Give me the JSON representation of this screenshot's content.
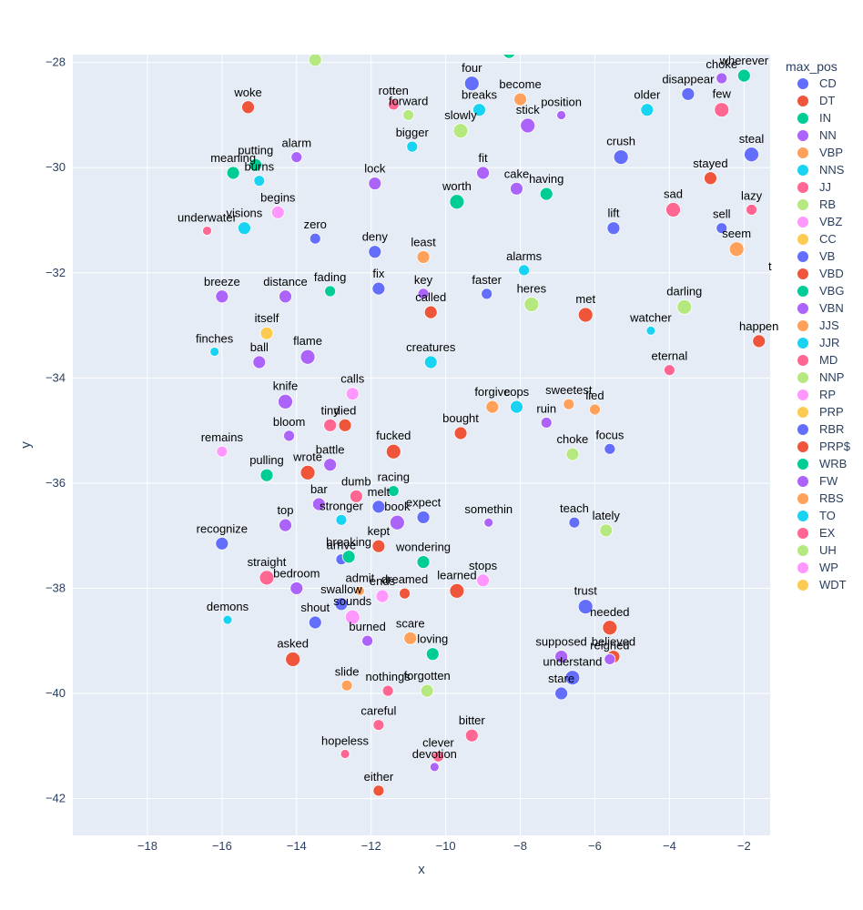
{
  "chart_data": {
    "type": "scatter",
    "title": "",
    "xlabel": "x",
    "ylabel": "y",
    "xlim": [
      -20,
      -1.3
    ],
    "ylim": [
      -42.7,
      -27.85
    ],
    "x_ticks": [
      -18,
      -16,
      -14,
      -12,
      -10,
      -8,
      -6,
      -4,
      -2
    ],
    "y_ticks": [
      -28,
      -30,
      -32,
      -34,
      -36,
      -38,
      -40,
      -42
    ],
    "grid": true,
    "legend": {
      "title": "max_pos",
      "placement": "right",
      "entries": [
        {
          "name": "CD",
          "color": "#636efa"
        },
        {
          "name": "DT",
          "color": "#EF553B"
        },
        {
          "name": "IN",
          "color": "#00cc96"
        },
        {
          "name": "NN",
          "color": "#ab63fa"
        },
        {
          "name": "VBP",
          "color": "#FFA15A"
        },
        {
          "name": "NNS",
          "color": "#19d3f3"
        },
        {
          "name": "JJ",
          "color": "#FF6692"
        },
        {
          "name": "RB",
          "color": "#B6E880"
        },
        {
          "name": "VBZ",
          "color": "#FF97FF"
        },
        {
          "name": "CC",
          "color": "#FECB52"
        },
        {
          "name": "VB",
          "color": "#636efa"
        },
        {
          "name": "VBD",
          "color": "#EF553B"
        },
        {
          "name": "VBG",
          "color": "#00cc96"
        },
        {
          "name": "VBN",
          "color": "#ab63fa"
        },
        {
          "name": "JJS",
          "color": "#FFA15A"
        },
        {
          "name": "JJR",
          "color": "#19d3f3"
        },
        {
          "name": "MD",
          "color": "#FF6692"
        },
        {
          "name": "NNP",
          "color": "#B6E880"
        },
        {
          "name": "RP",
          "color": "#FF97FF"
        },
        {
          "name": "PRP",
          "color": "#FECB52"
        },
        {
          "name": "RBR",
          "color": "#636efa"
        },
        {
          "name": "PRP$",
          "color": "#EF553B"
        },
        {
          "name": "WRB",
          "color": "#00cc96"
        },
        {
          "name": "FW",
          "color": "#ab63fa"
        },
        {
          "name": "RBS",
          "color": "#FFA15A"
        },
        {
          "name": "TO",
          "color": "#19d3f3"
        },
        {
          "name": "EX",
          "color": "#FF6692"
        },
        {
          "name": "UH",
          "color": "#B6E880"
        },
        {
          "name": "WP",
          "color": "#FF97FF"
        },
        {
          "name": "WDT",
          "color": "#FECB52"
        }
      ]
    },
    "points": [
      {
        "label": "four",
        "x": -9.3,
        "y": -28.4,
        "pos": "VB",
        "size": 8
      },
      {
        "label": "become",
        "x": -8.0,
        "y": -28.7,
        "pos": "VBP",
        "size": 7
      },
      {
        "label": "disappear",
        "x": -3.5,
        "y": -28.6,
        "pos": "VB",
        "size": 7
      },
      {
        "label": "choke",
        "x": -2.6,
        "y": -28.3,
        "pos": "FW",
        "size": 6
      },
      {
        "label": "wherever",
        "x": -2.0,
        "y": -28.25,
        "pos": "WRB",
        "size": 7
      },
      {
        "label": "woke",
        "x": -15.3,
        "y": -28.85,
        "pos": "VBD",
        "size": 7
      },
      {
        "label": "rotten",
        "x": -11.4,
        "y": -28.8,
        "pos": "JJ",
        "size": 6
      },
      {
        "label": "forward",
        "x": -11.0,
        "y": -29.0,
        "pos": "RB",
        "size": 6
      },
      {
        "label": "breaks",
        "x": -9.1,
        "y": -28.9,
        "pos": "NNS",
        "size": 7
      },
      {
        "label": "slowly",
        "x": -9.6,
        "y": -29.3,
        "pos": "RB",
        "size": 8
      },
      {
        "label": "stick",
        "x": -7.8,
        "y": -29.2,
        "pos": "NN",
        "size": 8
      },
      {
        "label": "position",
        "x": -6.9,
        "y": -29.0,
        "pos": "NN",
        "size": 5
      },
      {
        "label": "older",
        "x": -4.6,
        "y": -28.9,
        "pos": "JJR",
        "size": 7
      },
      {
        "label": "few",
        "x": -2.6,
        "y": -28.9,
        "pos": "JJ",
        "size": 8
      },
      {
        "label": "bigger",
        "x": -10.9,
        "y": -29.6,
        "pos": "JJR",
        "size": 6
      },
      {
        "label": "putting",
        "x": -15.1,
        "y": -29.95,
        "pos": "VBG",
        "size": 7
      },
      {
        "label": "alarm",
        "x": -14.0,
        "y": -29.8,
        "pos": "NN",
        "size": 6
      },
      {
        "label": "meaning",
        "x": -15.7,
        "y": -30.1,
        "pos": "VBG",
        "size": 7
      },
      {
        "label": "burns",
        "x": -15.0,
        "y": -30.25,
        "pos": "NNS",
        "size": 6
      },
      {
        "label": "crush",
        "x": -5.3,
        "y": -29.8,
        "pos": "VB",
        "size": 8
      },
      {
        "label": "steal",
        "x": -1.8,
        "y": -29.75,
        "pos": "VB",
        "size": 8
      },
      {
        "label": "lock",
        "x": -11.9,
        "y": -30.3,
        "pos": "NN",
        "size": 7
      },
      {
        "label": "fit",
        "x": -9.0,
        "y": -30.1,
        "pos": "VBN",
        "size": 7
      },
      {
        "label": "cake",
        "x": -8.1,
        "y": -30.4,
        "pos": "NN",
        "size": 7
      },
      {
        "label": "having",
        "x": -7.3,
        "y": -30.5,
        "pos": "VBG",
        "size": 7
      },
      {
        "label": "worth",
        "x": -9.7,
        "y": -30.65,
        "pos": "IN",
        "size": 8
      },
      {
        "label": "stayed",
        "x": -2.9,
        "y": -30.2,
        "pos": "VBD",
        "size": 7
      },
      {
        "label": "begins",
        "x": -14.5,
        "y": -30.85,
        "pos": "VBZ",
        "size": 7
      },
      {
        "label": "underwater",
        "x": -16.4,
        "y": -31.2,
        "pos": "JJ",
        "size": 5
      },
      {
        "label": "visions",
        "x": -15.4,
        "y": -31.15,
        "pos": "NNS",
        "size": 7
      },
      {
        "label": "zero",
        "x": -13.5,
        "y": -31.35,
        "pos": "CD",
        "size": 6
      },
      {
        "label": "sad",
        "x": -3.9,
        "y": -30.8,
        "pos": "JJ",
        "size": 8
      },
      {
        "label": "lazy",
        "x": -1.8,
        "y": -30.8,
        "pos": "JJ",
        "size": 6
      },
      {
        "label": "lift",
        "x": -5.5,
        "y": -31.15,
        "pos": "VB",
        "size": 7
      },
      {
        "label": "sell",
        "x": -2.6,
        "y": -31.15,
        "pos": "VB",
        "size": 6
      },
      {
        "label": "seem",
        "x": -2.2,
        "y": -31.55,
        "pos": "VBP",
        "size": 8
      },
      {
        "label": "deny",
        "x": -11.9,
        "y": -31.6,
        "pos": "VB",
        "size": 7
      },
      {
        "label": "least",
        "x": -10.6,
        "y": -31.7,
        "pos": "JJS",
        "size": 7
      },
      {
        "label": "alarms",
        "x": -7.9,
        "y": -31.95,
        "pos": "NNS",
        "size": 6
      },
      {
        "label": "breeze",
        "x": -16.0,
        "y": -32.45,
        "pos": "NN",
        "size": 7
      },
      {
        "label": "distance",
        "x": -14.3,
        "y": -32.45,
        "pos": "NN",
        "size": 7
      },
      {
        "label": "fading",
        "x": -13.1,
        "y": -32.35,
        "pos": "VBG",
        "size": 6
      },
      {
        "label": "fix",
        "x": -11.8,
        "y": -32.3,
        "pos": "VB",
        "size": 7
      },
      {
        "label": "key",
        "x": -10.6,
        "y": -32.4,
        "pos": "NN",
        "size": 6
      },
      {
        "label": "faster",
        "x": -8.9,
        "y": -32.4,
        "pos": "RBR",
        "size": 6
      },
      {
        "label": "heres",
        "x": -7.7,
        "y": -32.6,
        "pos": "NNP",
        "size": 8
      },
      {
        "label": "called",
        "x": -10.4,
        "y": -32.75,
        "pos": "VBD",
        "size": 7
      },
      {
        "label": "met",
        "x": -6.25,
        "y": -32.8,
        "pos": "VBD",
        "size": 8
      },
      {
        "label": "darling",
        "x": -3.6,
        "y": -32.65,
        "pos": "NNP",
        "size": 8
      },
      {
        "label": "itself",
        "x": -14.8,
        "y": -33.15,
        "pos": "PRP",
        "size": 7
      },
      {
        "label": "watcher",
        "x": -4.5,
        "y": -33.1,
        "pos": "NNS",
        "size": 5
      },
      {
        "label": "happen",
        "x": -1.6,
        "y": -33.3,
        "pos": "VBD",
        "size": 7
      },
      {
        "label": "finches",
        "x": -16.2,
        "y": -33.5,
        "pos": "NNS",
        "size": 5
      },
      {
        "label": "ball",
        "x": -15.0,
        "y": -33.7,
        "pos": "NN",
        "size": 7
      },
      {
        "label": "flame",
        "x": -13.7,
        "y": -33.6,
        "pos": "NN",
        "size": 8
      },
      {
        "label": "creatures",
        "x": -10.4,
        "y": -33.7,
        "pos": "NNS",
        "size": 7
      },
      {
        "label": "eternal",
        "x": -4.0,
        "y": -33.85,
        "pos": "JJ",
        "size": 6
      },
      {
        "label": "knife",
        "x": -14.3,
        "y": -34.45,
        "pos": "NN",
        "size": 8
      },
      {
        "label": "calls",
        "x": -12.5,
        "y": -34.3,
        "pos": "VBZ",
        "size": 7
      },
      {
        "label": "forgive",
        "x": -8.75,
        "y": -34.55,
        "pos": "VBP",
        "size": 7
      },
      {
        "label": "cops",
        "x": -8.1,
        "y": -34.55,
        "pos": "NNS",
        "size": 7
      },
      {
        "label": "sweetest",
        "x": -6.7,
        "y": -34.5,
        "pos": "JJS",
        "size": 6
      },
      {
        "label": "lied",
        "x": -6.0,
        "y": -34.6,
        "pos": "VBP",
        "size": 6
      },
      {
        "label": "tiny",
        "x": -13.1,
        "y": -34.9,
        "pos": "JJ",
        "size": 7
      },
      {
        "label": "died",
        "x": -12.7,
        "y": -34.9,
        "pos": "VBD",
        "size": 7
      },
      {
        "label": "ruin",
        "x": -7.3,
        "y": -34.85,
        "pos": "NN",
        "size": 6
      },
      {
        "label": "bloom",
        "x": -14.2,
        "y": -35.1,
        "pos": "NN",
        "size": 6
      },
      {
        "label": "bought",
        "x": -9.6,
        "y": -35.05,
        "pos": "VBD",
        "size": 7
      },
      {
        "label": "remains",
        "x": -16.0,
        "y": -35.4,
        "pos": "VBZ",
        "size": 6
      },
      {
        "label": "fucked",
        "x": -11.4,
        "y": -35.4,
        "pos": "VBD",
        "size": 8
      },
      {
        "label": "choke2",
        "x": -6.6,
        "y": -35.45,
        "pos": "NNP",
        "size": 7
      },
      {
        "label": "focus",
        "x": -5.6,
        "y": -35.35,
        "pos": "VB",
        "size": 6
      },
      {
        "label": "battle",
        "x": -13.1,
        "y": -35.65,
        "pos": "NN",
        "size": 7
      },
      {
        "label": "wrote",
        "x": -13.7,
        "y": -35.8,
        "pos": "VBD",
        "size": 8
      },
      {
        "label": "pulling",
        "x": -14.8,
        "y": -35.85,
        "pos": "VBG",
        "size": 7
      },
      {
        "label": "racing",
        "x": -11.4,
        "y": -36.15,
        "pos": "VBG",
        "size": 6
      },
      {
        "label": "dumb",
        "x": -12.4,
        "y": -36.25,
        "pos": "JJ",
        "size": 7
      },
      {
        "label": "bar",
        "x": -13.4,
        "y": -36.4,
        "pos": "NN",
        "size": 7
      },
      {
        "label": "melt",
        "x": -11.8,
        "y": -36.45,
        "pos": "VB",
        "size": 7
      },
      {
        "label": "book",
        "x": -11.3,
        "y": -36.75,
        "pos": "NN",
        "size": 8
      },
      {
        "label": "expect",
        "x": -10.6,
        "y": -36.65,
        "pos": "VB",
        "size": 7
      },
      {
        "label": "stronger",
        "x": -12.8,
        "y": -36.7,
        "pos": "JJR",
        "size": 6
      },
      {
        "label": "somethin",
        "x": -8.85,
        "y": -36.75,
        "pos": "NN",
        "size": 5
      },
      {
        "label": "teach",
        "x": -6.55,
        "y": -36.75,
        "pos": "VB",
        "size": 6
      },
      {
        "label": "top",
        "x": -14.3,
        "y": -36.8,
        "pos": "NN",
        "size": 7
      },
      {
        "label": "lately",
        "x": -5.7,
        "y": -36.9,
        "pos": "NNP",
        "size": 7
      },
      {
        "label": "recognize",
        "x": -16.0,
        "y": -37.15,
        "pos": "VB",
        "size": 7
      },
      {
        "label": "kept",
        "x": -11.8,
        "y": -37.2,
        "pos": "VBD",
        "size": 7
      },
      {
        "label": "arrive",
        "x": -12.8,
        "y": -37.45,
        "pos": "VB",
        "size": 6
      },
      {
        "label": "breaking",
        "x": -12.6,
        "y": -37.4,
        "pos": "VBG",
        "size": 7
      },
      {
        "label": "wondering",
        "x": -10.6,
        "y": -37.5,
        "pos": "VBG",
        "size": 7
      },
      {
        "label": "straight",
        "x": -14.8,
        "y": -37.8,
        "pos": "JJ",
        "size": 8
      },
      {
        "label": "bedroom",
        "x": -14.0,
        "y": -38.0,
        "pos": "NN",
        "size": 7
      },
      {
        "label": "admit",
        "x": -12.3,
        "y": -38.05,
        "pos": "VBP",
        "size": 5
      },
      {
        "label": "stops",
        "x": -9.0,
        "y": -37.85,
        "pos": "VBZ",
        "size": 7
      },
      {
        "label": "swallow",
        "x": -12.8,
        "y": -38.3,
        "pos": "VB",
        "size": 7
      },
      {
        "label": "ends",
        "x": -11.7,
        "y": -38.15,
        "pos": "VBZ",
        "size": 7
      },
      {
        "label": "dreamed",
        "x": -11.1,
        "y": -38.1,
        "pos": "VBD",
        "size": 6
      },
      {
        "label": "learned",
        "x": -9.7,
        "y": -38.05,
        "pos": "VBD",
        "size": 8
      },
      {
        "label": "trust",
        "x": -6.25,
        "y": -38.35,
        "pos": "VB",
        "size": 8
      },
      {
        "label": "sounds",
        "x": -12.5,
        "y": -38.55,
        "pos": "VBZ",
        "size": 8
      },
      {
        "label": "demons",
        "x": -15.85,
        "y": -38.6,
        "pos": "NNS",
        "size": 5
      },
      {
        "label": "shout",
        "x": -13.5,
        "y": -38.65,
        "pos": "VB",
        "size": 7
      },
      {
        "label": "needed",
        "x": -5.6,
        "y": -38.75,
        "pos": "VBD",
        "size": 8
      },
      {
        "label": "scare",
        "x": -10.95,
        "y": -38.95,
        "pos": "VBP",
        "size": 7
      },
      {
        "label": "burned",
        "x": -12.1,
        "y": -39.0,
        "pos": "VBN",
        "size": 6
      },
      {
        "label": "loving",
        "x": -10.35,
        "y": -39.25,
        "pos": "VBG",
        "size": 7
      },
      {
        "label": "asked",
        "x": -14.1,
        "y": -39.35,
        "pos": "VBD",
        "size": 8
      },
      {
        "label": "supposed",
        "x": -6.9,
        "y": -39.3,
        "pos": "VBN",
        "size": 7
      },
      {
        "label": "believed",
        "x": -5.5,
        "y": -39.3,
        "pos": "VBD",
        "size": 7
      },
      {
        "label": "reigned",
        "x": -5.6,
        "y": -39.35,
        "pos": "VBN",
        "size": 6
      },
      {
        "label": "understand",
        "x": -6.6,
        "y": -39.7,
        "pos": "VB",
        "size": 8
      },
      {
        "label": "slide",
        "x": -12.65,
        "y": -39.85,
        "pos": "VBP",
        "size": 6
      },
      {
        "label": "nothings",
        "x": -11.55,
        "y": -39.95,
        "pos": "JJ",
        "size": 6
      },
      {
        "label": "forgotten",
        "x": -10.5,
        "y": -39.95,
        "pos": "NNP",
        "size": 7
      },
      {
        "label": "stare",
        "x": -6.9,
        "y": -40.0,
        "pos": "VB",
        "size": 7
      },
      {
        "label": "careful",
        "x": -11.8,
        "y": -40.6,
        "pos": "JJ",
        "size": 6
      },
      {
        "label": "bitter",
        "x": -9.3,
        "y": -40.8,
        "pos": "JJ",
        "size": 7
      },
      {
        "label": "hopeless",
        "x": -12.7,
        "y": -41.15,
        "pos": "JJ",
        "size": 5
      },
      {
        "label": "clever",
        "x": -10.2,
        "y": -41.2,
        "pos": "JJ",
        "size": 6
      },
      {
        "label": "devotion",
        "x": -10.3,
        "y": -41.4,
        "pos": "NN",
        "size": 5
      },
      {
        "label": "either",
        "x": -11.8,
        "y": -41.85,
        "pos": "DT",
        "size": 6
      }
    ],
    "cut_off_labels": [
      {
        "text": "t",
        "x": -1.3,
        "y": -31.95
      }
    ],
    "partial_points": [
      {
        "x": -13.5,
        "y": -27.95,
        "pos": "NNP",
        "size": 7
      },
      {
        "x": -8.3,
        "y": -27.8,
        "pos": "VBG",
        "size": 7
      }
    ]
  }
}
